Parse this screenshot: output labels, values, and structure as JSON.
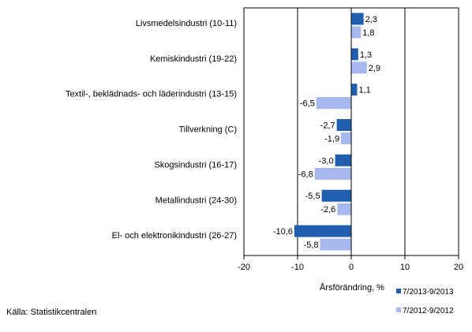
{
  "chart_data": {
    "type": "bar",
    "orientation": "horizontal",
    "categories": [
      "Livsmedelsindustri (10-11)",
      "Kemiskindustri (19-22)",
      "Textil-, beklädnads- och läderindustri (13-15)",
      "Tillverkning (C)",
      "Skogsindustri (16-17)",
      "Metallindustri (24-30)",
      "El- och elektronikindustri (26-27)"
    ],
    "series": [
      {
        "name": "7/2013-9/2013",
        "color": "#1f5fad",
        "values": [
          2.3,
          1.3,
          1.1,
          -2.7,
          -3.0,
          -5.5,
          -10.6
        ],
        "labels": [
          "2,3",
          "1,3",
          "1,1",
          "-2,7",
          "-3,0",
          "-5,5",
          "-10,6"
        ]
      },
      {
        "name": "7/2012-9/2012",
        "color": "#a7b8ef",
        "values": [
          1.8,
          2.9,
          -6.5,
          -1.9,
          -6.8,
          -2.6,
          -5.8
        ],
        "labels": [
          "1,8",
          "2,9",
          "-6,5",
          "-1,9",
          "-6,8",
          "-2,6",
          "-5,8"
        ]
      }
    ],
    "xlabel": "Årsförändring, %",
    "xlim": [
      -20,
      20
    ],
    "xticks": [
      -20,
      -10,
      0,
      10,
      20
    ],
    "xtick_labels": [
      "-20",
      "-10",
      "0",
      "10",
      "20"
    ],
    "grid": "vertical lines",
    "legend_position": "bottom-right"
  },
  "source": "Källa: Statistikcentralen"
}
